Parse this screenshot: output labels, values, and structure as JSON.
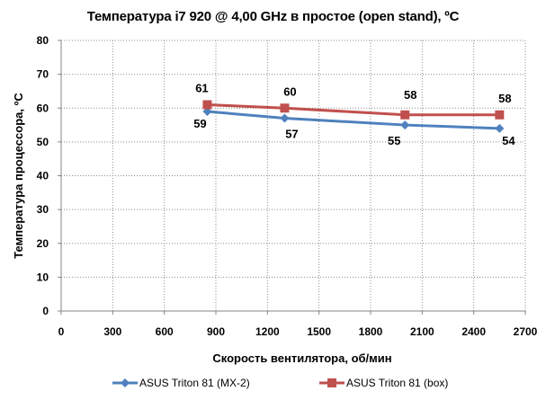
{
  "chart_data": {
    "type": "line",
    "title": "Температура i7 920 @ 4,00 GHz в простое (open stand), ºC",
    "xlabel": "Скорость вентилятора, об/мин",
    "ylabel": "Температура процессора, ºC",
    "xlim": [
      0,
      2700
    ],
    "ylim": [
      0,
      80
    ],
    "x_ticks": [
      "0",
      "300",
      "600",
      "900",
      "1200",
      "1500",
      "1800",
      "2100",
      "2400",
      "2700"
    ],
    "y_ticks": [
      "0",
      "10",
      "20",
      "30",
      "40",
      "50",
      "60",
      "70",
      "80"
    ],
    "grid": true,
    "legend_position": "bottom",
    "series": [
      {
        "name": "ASUS Triton 81 (MX-2)",
        "color": "#4F81BD",
        "marker": "diamond",
        "x": [
          850,
          1300,
          2000,
          2550
        ],
        "values": [
          59,
          57,
          55,
          54
        ]
      },
      {
        "name": "ASUS Triton 81 (box)",
        "color": "#C0504D",
        "marker": "square",
        "x": [
          850,
          1300,
          2000,
          2550
        ],
        "values": [
          61,
          60,
          58,
          58
        ]
      }
    ]
  }
}
